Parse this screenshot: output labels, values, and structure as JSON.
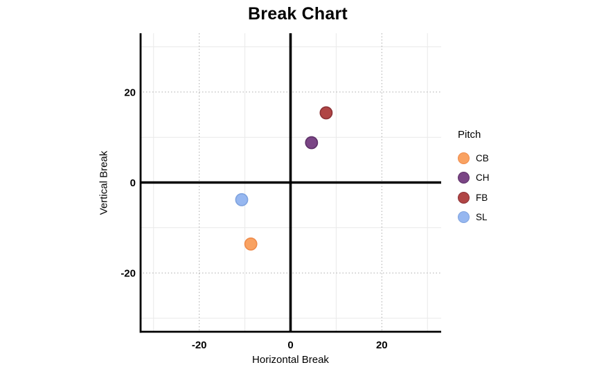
{
  "chart_data": {
    "type": "scatter",
    "title": "Break Chart",
    "xlabel": "Horizontal Break",
    "ylabel": "Vertical Break",
    "xlim": [
      -33,
      33
    ],
    "ylim": [
      -33,
      33
    ],
    "x_ticks": [
      -20,
      0,
      20
    ],
    "y_ticks": [
      -20,
      0,
      20
    ],
    "minor_gridlines_x": [
      -30,
      -10,
      10,
      30
    ],
    "minor_gridlines_y": [
      -30,
      -10,
      10,
      30
    ],
    "major_gridlines_x": [
      -20,
      20
    ],
    "major_gridlines_y": [
      -20,
      20
    ],
    "grid": true,
    "zero_lines": true,
    "legend_title": "Pitch",
    "legend_position": "right",
    "colors": {
      "axis_line": "#000000",
      "zero_line": "#000000",
      "minor_grid": "#E9E9E9",
      "major_grid": "#ABABAB",
      "background": "#FFFFFF"
    },
    "series": [
      {
        "name": "CB",
        "color": "#F9A262",
        "stroke": "#EF8B4B",
        "points": [
          {
            "x": -8.7,
            "y": -13.6
          }
        ]
      },
      {
        "name": "CH",
        "color": "#7A4585",
        "stroke": "#5E3168",
        "points": [
          {
            "x": 4.6,
            "y": 8.8
          }
        ]
      },
      {
        "name": "FB",
        "color": "#B04545",
        "stroke": "#8C3237",
        "points": [
          {
            "x": 7.8,
            "y": 15.4
          }
        ]
      },
      {
        "name": "SL",
        "color": "#96B7F0",
        "stroke": "#7FA3DE",
        "points": [
          {
            "x": -10.7,
            "y": -3.8
          }
        ]
      }
    ]
  }
}
